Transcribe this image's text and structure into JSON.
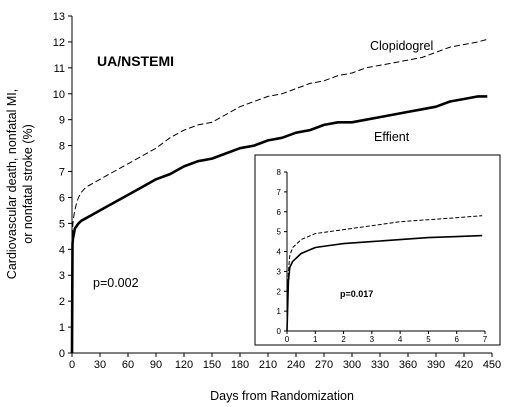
{
  "chart_data": [
    {
      "type": "line",
      "title": "UA/NSTEMI",
      "xlabel": "Days from Randomization",
      "ylabel_lines": [
        "Cardiovascular death, nonfatal MI,",
        "or nonfatal stroke (%)"
      ],
      "xlim": [
        0,
        450
      ],
      "ylim": [
        0,
        13
      ],
      "xticks": [
        0,
        30,
        60,
        90,
        120,
        150,
        180,
        210,
        240,
        270,
        300,
        330,
        360,
        390,
        420,
        450
      ],
      "yticks": [
        0,
        1,
        2,
        3,
        4,
        5,
        6,
        7,
        8,
        9,
        10,
        11,
        12,
        13
      ],
      "grid": false,
      "annotation": "p=0.002",
      "series": [
        {
          "name": "Clopidogrel",
          "style": "dashed",
          "x": [
            0,
            0.5,
            1,
            2,
            3,
            5,
            7,
            10,
            15,
            20,
            30,
            45,
            60,
            75,
            90,
            105,
            120,
            135,
            150,
            165,
            180,
            195,
            210,
            225,
            240,
            255,
            270,
            285,
            300,
            315,
            330,
            345,
            360,
            375,
            390,
            405,
            420,
            435,
            445
          ],
          "y": [
            0,
            4.8,
            5.0,
            5.3,
            5.5,
            5.8,
            6.0,
            6.2,
            6.4,
            6.5,
            6.7,
            7.0,
            7.3,
            7.6,
            7.9,
            8.3,
            8.6,
            8.8,
            8.9,
            9.2,
            9.5,
            9.7,
            9.9,
            10.0,
            10.2,
            10.4,
            10.5,
            10.7,
            10.8,
            11.0,
            11.1,
            11.2,
            11.3,
            11.4,
            11.6,
            11.8,
            11.9,
            12.0,
            12.1
          ]
        },
        {
          "name": "Effient",
          "style": "solid",
          "x": [
            0,
            0.5,
            1,
            2,
            3,
            5,
            7,
            10,
            15,
            20,
            30,
            45,
            60,
            75,
            90,
            105,
            120,
            135,
            150,
            165,
            180,
            195,
            210,
            225,
            240,
            255,
            270,
            285,
            300,
            315,
            330,
            345,
            360,
            375,
            390,
            405,
            420,
            435,
            445
          ],
          "y": [
            0,
            4.2,
            4.4,
            4.6,
            4.8,
            4.9,
            5.0,
            5.1,
            5.2,
            5.3,
            5.5,
            5.8,
            6.1,
            6.4,
            6.7,
            6.9,
            7.2,
            7.4,
            7.5,
            7.7,
            7.9,
            8.0,
            8.2,
            8.3,
            8.5,
            8.6,
            8.8,
            8.9,
            8.9,
            9.0,
            9.1,
            9.2,
            9.3,
            9.4,
            9.5,
            9.7,
            9.8,
            9.9,
            9.9
          ]
        }
      ]
    },
    {
      "type": "line",
      "xlim": [
        0,
        7
      ],
      "ylim": [
        0,
        8
      ],
      "xticks": [
        0,
        1,
        2,
        3,
        4,
        5,
        6,
        7
      ],
      "yticks": [
        0,
        1,
        2,
        3,
        4,
        5,
        6,
        7,
        8
      ],
      "grid": false,
      "annotation": "p=0.017",
      "series": [
        {
          "style": "dashed",
          "x": [
            0,
            0.05,
            0.1,
            0.2,
            0.35,
            0.5,
            1,
            1.5,
            2,
            3,
            4,
            5,
            6,
            6.9
          ],
          "y": [
            0,
            3.0,
            3.8,
            4.2,
            4.4,
            4.6,
            4.9,
            5.0,
            5.1,
            5.3,
            5.5,
            5.6,
            5.7,
            5.8
          ]
        },
        {
          "style": "solid",
          "x": [
            0,
            0.05,
            0.1,
            0.2,
            0.35,
            0.5,
            1,
            1.5,
            2,
            3,
            4,
            5,
            6,
            6.9
          ],
          "y": [
            0,
            2.5,
            3.2,
            3.5,
            3.7,
            3.9,
            4.2,
            4.3,
            4.4,
            4.5,
            4.6,
            4.7,
            4.75,
            4.8
          ]
        }
      ]
    }
  ]
}
